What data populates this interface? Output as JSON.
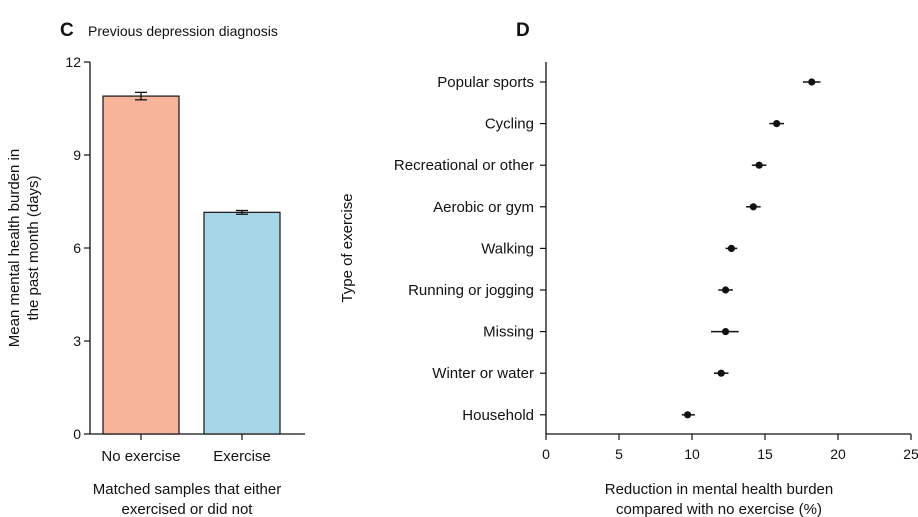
{
  "chart_data": [
    {
      "type": "bar",
      "panel": "C",
      "title": "Previous depression diagnosis",
      "categories": [
        "No exercise",
        "Exercise"
      ],
      "values": [
        10.9,
        7.15
      ],
      "errors": [
        0.12,
        0.06
      ],
      "colors": [
        "#f8b49b",
        "#a6d6e6"
      ],
      "ylabel": "Mean mental health burden in the past month (days)",
      "ylabel_lines": [
        "Mean mental health burden in",
        "the past month (days)"
      ],
      "xlabel": "Matched samples that either exercised or did not",
      "xlabel_lines": [
        "Matched samples that either",
        "exercised or did not"
      ],
      "ylim": [
        0,
        12
      ],
      "yticks": [
        0,
        3,
        6,
        9,
        12
      ],
      "grid": false
    },
    {
      "type": "scatter",
      "panel": "D",
      "title": "",
      "categories": [
        "Popular sports",
        "Cycling",
        "Recreational or other",
        "Aerobic or gym",
        "Walking",
        "Running or jogging",
        "Missing",
        "Winter or water",
        "Household"
      ],
      "values": [
        18.2,
        15.8,
        14.6,
        14.2,
        12.7,
        12.3,
        12.3,
        12.0,
        9.7
      ],
      "ci_low": [
        17.6,
        15.3,
        14.1,
        13.7,
        12.3,
        11.8,
        11.3,
        11.5,
        9.3
      ],
      "ci_high": [
        18.8,
        16.3,
        15.1,
        14.7,
        13.1,
        12.8,
        13.2,
        12.5,
        10.2
      ],
      "ylabel": "Type of exercise",
      "xlabel": "Reduction in mental health burden compared with no exercise (%)",
      "xlabel_lines": [
        "Reduction in mental health burden",
        "compared with no exercise (%)"
      ],
      "xlim": [
        0,
        25
      ],
      "xticks": [
        0,
        5,
        10,
        15,
        20,
        25
      ],
      "grid": false
    }
  ]
}
